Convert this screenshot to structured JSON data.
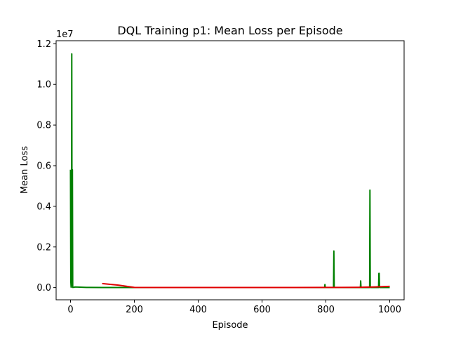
{
  "chart_data": {
    "type": "line",
    "title": "DQL Training p1: Mean Loss per Episode",
    "xlabel": "Episode",
    "ylabel": "Mean Loss",
    "y_scale_label": "1e7",
    "xlim": [
      -45,
      1045
    ],
    "ylim": [
      -600000,
      12150000
    ],
    "x_ticks": [
      0,
      200,
      400,
      600,
      800,
      1000
    ],
    "x_tick_labels": [
      "0",
      "200",
      "400",
      "600",
      "800",
      "1000"
    ],
    "y_ticks": [
      0,
      2000000,
      4000000,
      6000000,
      8000000,
      10000000,
      12000000
    ],
    "y_tick_labels": [
      "0.0",
      "0.2",
      "0.4",
      "0.6",
      "0.8",
      "1.0",
      "1.2"
    ],
    "grid": false,
    "series": [
      {
        "color": "#008000",
        "x": [
          0,
          1,
          2,
          3,
          4,
          5,
          6,
          7,
          8,
          10,
          14,
          50,
          100,
          200,
          300,
          400,
          500,
          600,
          700,
          796,
          797,
          798,
          799,
          800,
          824,
          825,
          826,
          827,
          828,
          908,
          909,
          910,
          911,
          912,
          937,
          938,
          939,
          940,
          941,
          965,
          966,
          967,
          968,
          969,
          1000
        ],
        "y": [
          5800000,
          300000,
          20000,
          200000,
          11500000,
          500000,
          5800000,
          10000,
          15000,
          12000,
          30000,
          8000,
          5000,
          4000,
          3000,
          3000,
          4000,
          5000,
          6000,
          5000,
          150000,
          20000,
          5000,
          3000,
          5000,
          1800000,
          30000,
          5000,
          3000,
          5000,
          330000,
          10000,
          4000,
          3000,
          5000,
          4800000,
          40000,
          5000,
          3000,
          5000,
          700000,
          700000,
          20000,
          3000,
          4000
        ]
      },
      {
        "color": "#e00000",
        "x": [
          99,
          150,
          200,
          300,
          400,
          500,
          600,
          700,
          800,
          850,
          900,
          950,
          1000
        ],
        "y": [
          200000,
          120000,
          10000,
          5000,
          5000,
          5000,
          5000,
          6000,
          8000,
          10000,
          15000,
          30000,
          60000
        ]
      }
    ]
  }
}
